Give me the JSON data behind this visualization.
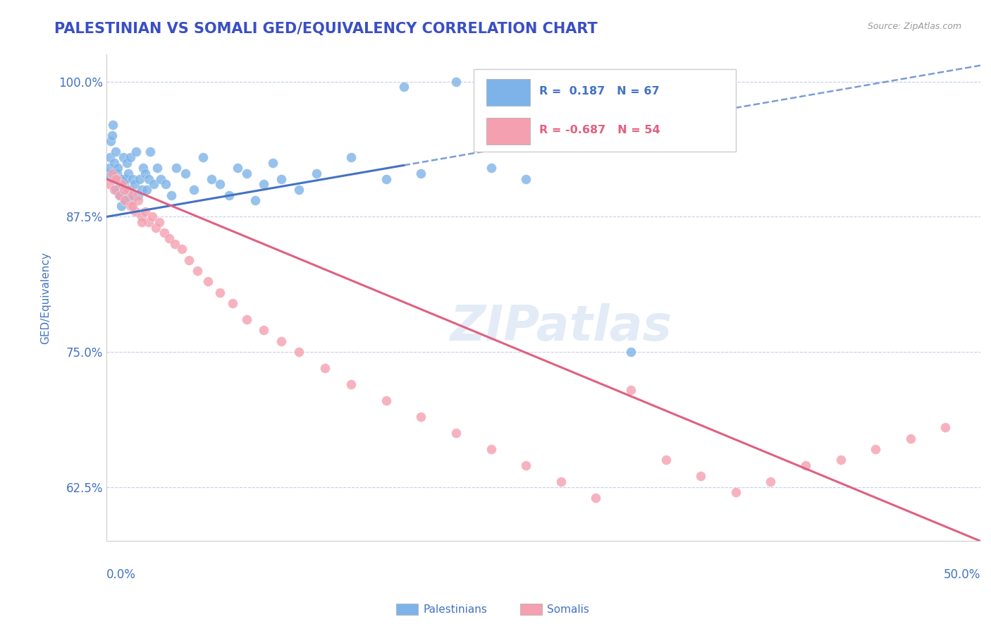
{
  "title": "PALESTINIAN VS SOMALI GED/EQUIVALENCY CORRELATION CHART",
  "source": "Source: ZipAtlas.com",
  "ylabel": "GED/Equivalency",
  "blue_R": 0.187,
  "blue_N": 67,
  "pink_R": -0.687,
  "pink_N": 54,
  "watermark": "ZIPatlas",
  "x_min": 0.0,
  "x_max": 50.0,
  "y_min": 57.5,
  "y_max": 102.5,
  "y_ticks": [
    62.5,
    75.0,
    87.5,
    100.0
  ],
  "blue_color": "#7db3e8",
  "pink_color": "#f4a0b0",
  "blue_line_color": "#4472c4",
  "pink_line_color": "#e06080",
  "title_color": "#3a4fc4",
  "axis_label_color": "#4472c4",
  "tick_color": "#4472c4",
  "grid_color": "#c0c8e8",
  "background_color": "#ffffff",
  "blue_points_x": [
    0.1,
    0.15,
    0.2,
    0.25,
    0.3,
    0.35,
    0.4,
    0.45,
    0.5,
    0.55,
    0.6,
    0.65,
    0.7,
    0.75,
    0.8,
    0.85,
    0.9,
    0.95,
    1.0,
    1.05,
    1.1,
    1.15,
    1.2,
    1.25,
    1.3,
    1.35,
    1.4,
    1.5,
    1.6,
    1.7,
    1.8,
    1.9,
    2.0,
    2.1,
    2.2,
    2.3,
    2.4,
    2.5,
    2.7,
    2.9,
    3.1,
    3.4,
    3.7,
    4.0,
    4.5,
    5.0,
    5.5,
    6.0,
    6.5,
    7.0,
    7.5,
    8.0,
    8.5,
    9.0,
    9.5,
    10.0,
    11.0,
    12.0,
    14.0,
    16.0,
    17.0,
    18.0,
    20.0,
    22.0,
    24.0,
    27.0,
    30.0
  ],
  "blue_points_y": [
    91.5,
    92.0,
    93.0,
    94.5,
    95.0,
    96.0,
    91.0,
    92.5,
    93.5,
    90.0,
    91.5,
    92.0,
    89.5,
    90.5,
    91.0,
    88.5,
    91.0,
    93.0,
    90.5,
    89.0,
    91.0,
    92.5,
    89.5,
    91.5,
    90.0,
    93.0,
    89.0,
    91.0,
    90.5,
    93.5,
    89.5,
    91.0,
    90.0,
    92.0,
    91.5,
    90.0,
    91.0,
    93.5,
    90.5,
    92.0,
    91.0,
    90.5,
    89.5,
    92.0,
    91.5,
    90.0,
    93.0,
    91.0,
    90.5,
    89.5,
    92.0,
    91.5,
    89.0,
    90.5,
    92.5,
    91.0,
    90.0,
    91.5,
    93.0,
    91.0,
    99.5,
    91.5,
    100.0,
    92.0,
    91.0,
    99.5,
    75.0
  ],
  "pink_points_x": [
    0.15,
    0.3,
    0.45,
    0.6,
    0.75,
    0.9,
    1.05,
    1.2,
    1.35,
    1.5,
    1.65,
    1.8,
    2.0,
    2.2,
    2.4,
    2.6,
    2.8,
    3.0,
    3.3,
    3.6,
    3.9,
    4.3,
    4.7,
    5.2,
    5.8,
    6.5,
    7.2,
    8.0,
    9.0,
    10.0,
    11.0,
    12.5,
    14.0,
    16.0,
    18.0,
    20.0,
    22.0,
    24.0,
    26.0,
    28.0,
    30.0,
    32.0,
    34.0,
    36.0,
    38.0,
    40.0,
    42.0,
    44.0,
    46.0,
    48.0,
    0.5,
    1.0,
    1.5,
    2.0
  ],
  "pink_points_y": [
    90.5,
    91.5,
    90.0,
    91.0,
    89.5,
    90.5,
    89.0,
    90.0,
    88.5,
    89.5,
    88.0,
    89.0,
    87.5,
    88.0,
    87.0,
    87.5,
    86.5,
    87.0,
    86.0,
    85.5,
    85.0,
    84.5,
    83.5,
    82.5,
    81.5,
    80.5,
    79.5,
    78.0,
    77.0,
    76.0,
    75.0,
    73.5,
    72.0,
    70.5,
    69.0,
    67.5,
    66.0,
    64.5,
    63.0,
    61.5,
    71.5,
    65.0,
    63.5,
    62.0,
    63.0,
    64.5,
    65.0,
    66.0,
    67.0,
    68.0,
    91.0,
    90.0,
    88.5,
    87.0
  ],
  "blue_trend_x0": 0.0,
  "blue_trend_x1": 50.0,
  "blue_trend_y0": 87.5,
  "blue_trend_y1": 101.5,
  "pink_trend_x0": 0.0,
  "pink_trend_x1": 50.0,
  "pink_trend_y0": 91.0,
  "pink_trend_y1": 57.5
}
